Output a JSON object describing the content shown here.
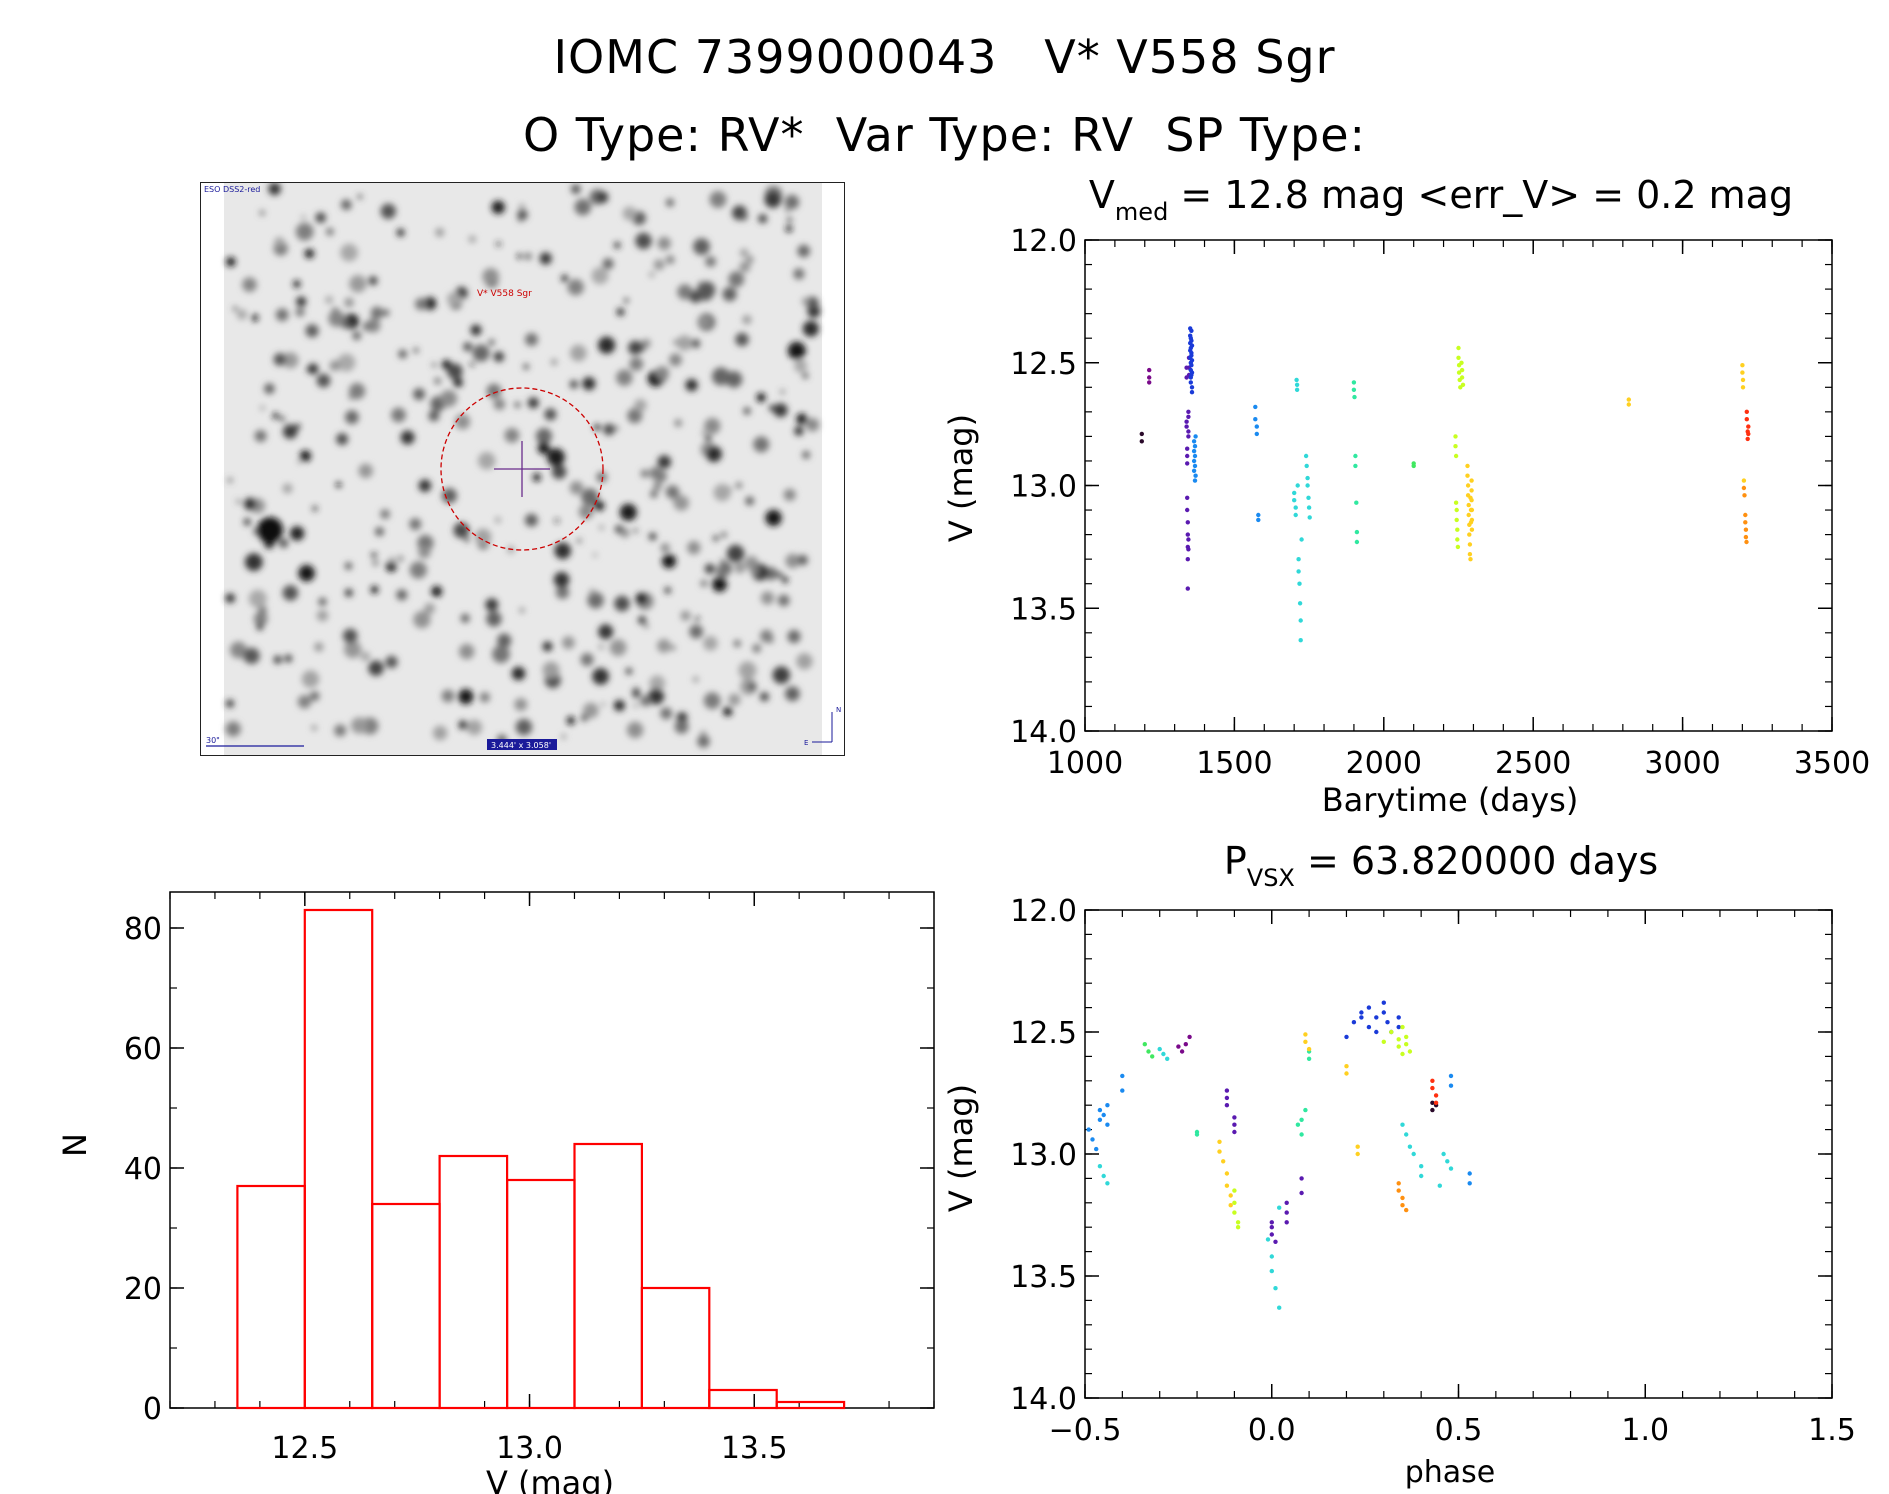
{
  "header": {
    "title": "IOMC 7399000043   V* V558 Sgr",
    "subtitle": "O Type: RV*  Var Type: RV  SP Type:"
  },
  "finder": {
    "survey_label": "ESO DSS2-red",
    "target_label": "V* V558 Sgr",
    "scale_label": "30\"",
    "fov_label": "3.444' x 3.058'",
    "north_label": "N",
    "east_label": "E"
  },
  "colors": {
    "hist_line": "#ff0000",
    "circle": "#cc0000",
    "cross": "#6a2c8c",
    "seasons": [
      "#2a0a2a",
      "#7a0a8a",
      "#5a1ab0",
      "#1a3ad8",
      "#1a8af0",
      "#30d8d8",
      "#30e8a0",
      "#40e860",
      "#c8ff20",
      "#ffd020",
      "#ff9010",
      "#ff3010"
    ]
  },
  "chart_data": [
    {
      "id": "light_curve",
      "type": "scatter",
      "title_prefix": "V",
      "title_sub": "med",
      "title_rest": " = 12.8 mag <err_V> = 0.2 mag",
      "xlabel": "Barytime (days)",
      "ylabel": "V (mag)",
      "xlim": [
        1000,
        3500
      ],
      "ylim": [
        14.0,
        12.0
      ],
      "xticks": [
        "1000",
        "1500",
        "2000",
        "2500",
        "3000",
        "3500"
      ],
      "yticks": [
        "12.0",
        "12.5",
        "13.0",
        "13.5",
        "14.0"
      ],
      "series": [
        {
          "name": "s0",
          "x": [
            1190,
            1190
          ],
          "y": [
            12.79,
            12.82
          ]
        },
        {
          "name": "s1",
          "x": [
            1215,
            1215,
            1215
          ],
          "y": [
            12.53,
            12.56,
            12.58
          ]
        },
        {
          "name": "s2",
          "x": [
            1340,
            1340,
            1340,
            1340,
            1342,
            1342,
            1342,
            1342,
            1342,
            1344,
            1344,
            1344,
            1344,
            1344,
            1346,
            1346,
            1346,
            1346,
            1346,
            1346,
            1348,
            1348,
            1348
          ],
          "y": [
            12.52,
            12.56,
            12.74,
            12.76,
            12.85,
            12.88,
            12.91,
            13.05,
            13.1,
            13.15,
            13.2,
            13.25,
            13.3,
            13.42,
            12.7,
            12.72,
            12.78,
            12.8,
            13.22,
            13.26,
            12.48,
            12.52,
            12.55
          ]
        },
        {
          "name": "s3",
          "x": [
            1352,
            1352,
            1352,
            1352,
            1352,
            1354,
            1354,
            1354,
            1354,
            1354,
            1354,
            1356,
            1356,
            1356,
            1356,
            1356,
            1356,
            1358,
            1358,
            1358,
            1358,
            1358
          ],
          "y": [
            12.36,
            12.39,
            12.42,
            12.45,
            12.48,
            12.5,
            12.53,
            12.56,
            12.58,
            12.4,
            12.44,
            12.47,
            12.51,
            12.55,
            12.37,
            12.41,
            12.46,
            12.6,
            12.62,
            12.43,
            12.49,
            12.54
          ]
        },
        {
          "name": "s4",
          "x": [
            1365,
            1365,
            1365,
            1365,
            1368,
            1368,
            1368,
            1368,
            1370,
            1370,
            1570,
            1570,
            1575,
            1575,
            1580,
            1580
          ],
          "y": [
            12.82,
            12.86,
            12.9,
            12.94,
            12.84,
            12.88,
            12.92,
            12.98,
            12.8,
            12.96,
            12.68,
            12.73,
            12.76,
            12.79,
            13.12,
            13.14
          ]
        },
        {
          "name": "s5",
          "x": [
            1700,
            1700,
            1705,
            1705,
            1708,
            1710,
            1710,
            1712,
            1715,
            1715,
            1718,
            1720,
            1722,
            1722,
            1725,
            1740,
            1742,
            1745,
            1745,
            1748,
            1750,
            1752
          ],
          "y": [
            13.03,
            13.06,
            13.09,
            13.12,
            12.57,
            12.59,
            12.61,
            13.0,
            13.3,
            13.35,
            13.4,
            13.48,
            13.55,
            13.63,
            13.22,
            12.88,
            12.92,
            12.97,
            13.0,
            13.05,
            13.09,
            13.13
          ]
        },
        {
          "name": "s6",
          "x": [
            1900,
            1900,
            1902,
            1905,
            1905,
            1908,
            1910,
            1910
          ],
          "y": [
            12.58,
            12.61,
            12.64,
            12.88,
            12.92,
            13.07,
            13.19,
            13.23
          ]
        },
        {
          "name": "s7",
          "x": [
            2100,
            2100
          ],
          "y": [
            12.91,
            12.92
          ]
        },
        {
          "name": "s8",
          "x": [
            2240,
            2240,
            2242,
            2242,
            2244,
            2244,
            2246,
            2246,
            2248,
            2250,
            2250,
            2252,
            2252,
            2254,
            2256,
            2260,
            2262,
            2262,
            2265
          ],
          "y": [
            12.8,
            12.84,
            12.88,
            13.07,
            13.1,
            13.14,
            13.18,
            13.22,
            13.25,
            12.44,
            12.48,
            12.51,
            12.54,
            12.57,
            12.6,
            12.5,
            12.53,
            12.56,
            12.59
          ]
        },
        {
          "name": "s9",
          "x": [
            2280,
            2280,
            2282,
            2282,
            2284,
            2284,
            2286,
            2286,
            2288,
            2288,
            2290,
            2290,
            2292,
            2292,
            2294,
            2294,
            2294,
            2295,
            2295,
            2295,
            2820,
            2820,
            3200,
            3200,
            3202,
            3202,
            3205
          ],
          "y": [
            12.92,
            12.96,
            13.0,
            13.04,
            13.08,
            13.12,
            13.16,
            13.2,
            13.24,
            13.28,
            13.3,
            13.05,
            13.1,
            13.15,
            12.98,
            13.02,
            13.06,
            13.1,
            13.14,
            13.18,
            12.65,
            12.67,
            12.51,
            12.54,
            12.57,
            12.6,
            12.98
          ]
        },
        {
          "name": "s10",
          "x": [
            3205,
            3207,
            3210,
            3210,
            3212,
            3212,
            3214
          ],
          "y": [
            13.01,
            13.04,
            13.12,
            13.15,
            13.18,
            13.21,
            13.23
          ]
        },
        {
          "name": "s11",
          "x": [
            3215,
            3215,
            3218,
            3218,
            3220,
            3220
          ],
          "y": [
            12.7,
            12.73,
            12.78,
            12.81,
            12.76,
            12.79
          ]
        }
      ]
    },
    {
      "id": "phase_curve",
      "type": "scatter",
      "title_prefix": "P",
      "title_sub": "VSX",
      "title_rest": " = 63.820000 days",
      "xlabel": "phase",
      "ylabel": "V (mag)",
      "xlim": [
        -0.5,
        1.5
      ],
      "ylim": [
        14.0,
        12.0
      ],
      "xticks": [
        "−0.5",
        "0.0",
        "0.5",
        "1.0",
        "1.5"
      ],
      "yticks": [
        "12.0",
        "12.5",
        "13.0",
        "13.5",
        "14.0"
      ],
      "series": [
        {
          "name": "s0",
          "x": [
            0.43,
            0.43,
            0.44
          ],
          "y": [
            12.79,
            12.82,
            12.8
          ]
        },
        {
          "name": "s1",
          "x": [
            -0.25,
            -0.24,
            -0.23,
            -0.22
          ],
          "y": [
            12.56,
            12.58,
            12.55,
            12.52
          ]
        },
        {
          "name": "s2",
          "x": [
            -0.12,
            -0.12,
            -0.12,
            -0.1,
            -0.1,
            -0.1,
            0.0,
            0.0,
            0.0,
            0.01,
            0.04,
            0.04,
            0.04,
            0.08,
            0.08
          ],
          "y": [
            12.74,
            12.77,
            12.8,
            12.85,
            12.88,
            12.91,
            13.28,
            13.3,
            13.33,
            13.36,
            13.2,
            13.24,
            13.28,
            13.16,
            13.1
          ]
        },
        {
          "name": "s3",
          "x": [
            0.2,
            0.22,
            0.24,
            0.24,
            0.26,
            0.26,
            0.28,
            0.28,
            0.3,
            0.3,
            0.31,
            0.32,
            0.34,
            0.34
          ],
          "y": [
            12.52,
            12.46,
            12.42,
            12.44,
            12.4,
            12.48,
            12.44,
            12.5,
            12.38,
            12.42,
            12.46,
            12.5,
            12.44,
            12.48
          ]
        },
        {
          "name": "s4",
          "x": [
            -0.49,
            -0.48,
            -0.47,
            -0.46,
            -0.46,
            -0.45,
            -0.44,
            -0.44,
            -0.4,
            -0.4,
            0.48,
            0.48,
            0.53,
            0.53
          ],
          "y": [
            12.9,
            12.94,
            12.98,
            12.86,
            12.82,
            12.84,
            12.8,
            12.88,
            12.68,
            12.74,
            12.68,
            12.72,
            13.12,
            13.08
          ]
        },
        {
          "name": "s5",
          "x": [
            -0.46,
            -0.45,
            -0.44,
            -0.3,
            -0.29,
            -0.28,
            -0.01,
            0.0,
            0.0,
            0.01,
            0.02,
            0.02,
            0.35,
            0.36,
            0.37,
            0.38,
            0.4,
            0.4,
            0.45,
            0.46,
            0.47,
            0.48
          ],
          "y": [
            13.05,
            13.09,
            13.12,
            12.57,
            12.59,
            12.61,
            13.35,
            13.42,
            13.48,
            13.55,
            13.63,
            13.22,
            12.88,
            12.92,
            12.97,
            13.0,
            13.05,
            13.09,
            13.13,
            13.0,
            13.03,
            13.06
          ]
        },
        {
          "name": "s6",
          "x": [
            -0.2,
            -0.2,
            0.07,
            0.08,
            0.08,
            0.09,
            0.1,
            0.1
          ],
          "y": [
            12.91,
            12.92,
            12.88,
            12.92,
            12.86,
            12.82,
            12.58,
            12.61
          ]
        },
        {
          "name": "s7",
          "x": [
            -0.34,
            -0.33,
            -0.32
          ],
          "y": [
            12.55,
            12.58,
            12.6
          ]
        },
        {
          "name": "s8",
          "x": [
            -0.1,
            -0.1,
            -0.1,
            -0.09,
            -0.09,
            0.3,
            0.32,
            0.34,
            0.34,
            0.35,
            0.35,
            0.36,
            0.36,
            0.37
          ],
          "y": [
            13.15,
            13.2,
            13.24,
            13.28,
            13.3,
            12.54,
            12.5,
            12.53,
            12.56,
            12.48,
            12.59,
            12.52,
            12.55,
            12.58
          ]
        },
        {
          "name": "s9",
          "x": [
            -0.14,
            -0.14,
            -0.13,
            -0.12,
            -0.12,
            -0.11,
            -0.11,
            0.09,
            0.09,
            0.1,
            0.2,
            0.2,
            0.23,
            0.23
          ],
          "y": [
            12.95,
            12.99,
            13.03,
            13.08,
            13.13,
            13.17,
            13.21,
            12.51,
            12.54,
            12.57,
            12.64,
            12.67,
            12.97,
            13.0
          ]
        },
        {
          "name": "s10",
          "x": [
            0.34,
            0.34,
            0.35,
            0.35,
            0.36
          ],
          "y": [
            13.12,
            13.15,
            13.18,
            13.21,
            13.23
          ]
        },
        {
          "name": "s11",
          "x": [
            0.43,
            0.43,
            0.44,
            0.44
          ],
          "y": [
            12.7,
            12.73,
            12.76,
            12.79
          ]
        }
      ]
    },
    {
      "id": "histogram",
      "type": "bar",
      "xlabel": "V (mag)",
      "ylabel": "N",
      "xlim": [
        12.2,
        13.9
      ],
      "ylim": [
        0,
        86
      ],
      "xticks": [
        "12.5",
        "13.0",
        "13.5"
      ],
      "yticks": [
        "0",
        "20",
        "40",
        "60",
        "80"
      ],
      "bin_edges": [
        12.35,
        12.5,
        12.65,
        12.8,
        12.95,
        13.1,
        13.25,
        13.4,
        13.55,
        13.7
      ],
      "values": [
        37,
        83,
        34,
        42,
        38,
        44,
        20,
        3,
        1
      ]
    }
  ]
}
